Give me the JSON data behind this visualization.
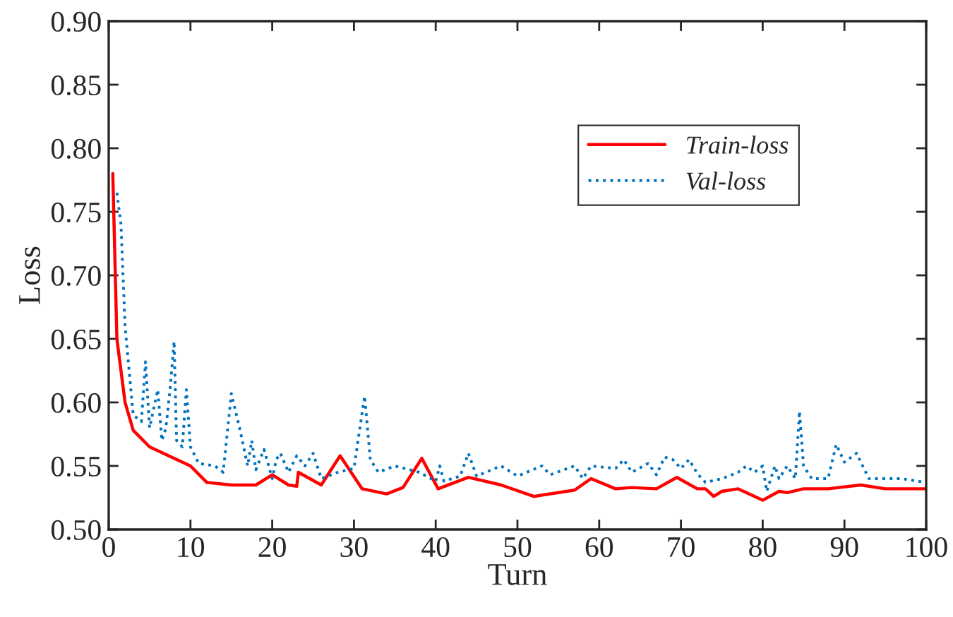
{
  "chart_data": {
    "type": "line",
    "xlabel": "Turn",
    "ylabel": "Loss",
    "xlim": [
      0,
      100
    ],
    "ylim": [
      0.5,
      0.9
    ],
    "xticks": [
      0,
      10,
      20,
      30,
      40,
      50,
      60,
      70,
      80,
      90,
      100
    ],
    "yticks": [
      {
        "value": 0.5,
        "label": "0.50"
      },
      {
        "value": 0.55,
        "label": "0.55"
      },
      {
        "value": 0.6,
        "label": "0.60"
      },
      {
        "value": 0.65,
        "label": "0.65"
      },
      {
        "value": 0.7,
        "label": "0.70"
      },
      {
        "value": 0.75,
        "label": "0.75"
      },
      {
        "value": 0.8,
        "label": "0.80"
      },
      {
        "value": 0.85,
        "label": "0.85"
      },
      {
        "value": 0.9,
        "label": "0.90"
      }
    ],
    "grid": false,
    "legend": "top right",
    "marker": "none",
    "series": [
      {
        "name": "Train-loss",
        "color": "#ff0000",
        "line_style": "solid",
        "x": [
          0.5,
          1,
          2,
          3,
          5,
          8,
          10,
          12,
          15,
          18,
          20,
          22,
          23,
          23.2,
          26,
          28.3,
          31,
          34,
          36,
          38.3,
          40.3,
          44,
          48,
          52,
          57,
          59,
          62,
          64,
          67,
          69.5,
          72,
          73,
          74,
          75,
          77,
          80,
          82,
          83,
          85,
          88,
          92,
          95,
          100
        ],
        "values": [
          0.78,
          0.65,
          0.6,
          0.578,
          0.565,
          0.556,
          0.55,
          0.537,
          0.535,
          0.535,
          0.543,
          0.535,
          0.534,
          0.545,
          0.535,
          0.558,
          0.532,
          0.528,
          0.533,
          0.556,
          0.532,
          0.541,
          0.535,
          0.526,
          0.531,
          0.54,
          0.532,
          0.533,
          0.532,
          0.541,
          0.532,
          0.532,
          0.526,
          0.53,
          0.532,
          0.523,
          0.53,
          0.529,
          0.532,
          0.532,
          0.535,
          0.532,
          0.532
        ]
      },
      {
        "name": "Val-loss",
        "color": "#0072bd",
        "line_style": "dotted",
        "x": [
          1,
          1.5,
          2,
          3,
          4,
          4.5,
          5,
          6,
          6.5,
          7,
          7.5,
          8,
          8.3,
          9,
          9.5,
          10,
          11,
          13,
          14,
          15,
          16,
          17,
          17.5,
          18,
          19,
          20,
          20.5,
          21,
          22,
          23,
          24,
          25,
          26,
          28,
          30,
          31.3,
          32,
          33,
          35,
          38,
          40,
          40.5,
          41,
          43,
          44,
          45,
          48,
          50,
          53,
          54,
          57,
          58,
          59,
          62,
          63,
          64,
          66,
          67,
          68,
          69,
          70,
          71,
          72,
          73,
          75,
          77,
          78,
          79,
          80,
          80.5,
          81.5,
          82,
          83,
          84,
          84.5,
          85,
          86,
          88,
          89,
          90,
          91.5,
          92,
          93,
          97,
          100
        ],
        "values": [
          0.765,
          0.74,
          0.66,
          0.59,
          0.585,
          0.632,
          0.58,
          0.61,
          0.57,
          0.58,
          0.61,
          0.648,
          0.57,
          0.565,
          0.61,
          0.565,
          0.552,
          0.55,
          0.545,
          0.607,
          0.58,
          0.55,
          0.57,
          0.547,
          0.563,
          0.54,
          0.555,
          0.56,
          0.545,
          0.558,
          0.55,
          0.56,
          0.54,
          0.545,
          0.548,
          0.605,
          0.555,
          0.545,
          0.55,
          0.545,
          0.538,
          0.55,
          0.538,
          0.542,
          0.56,
          0.542,
          0.55,
          0.542,
          0.55,
          0.543,
          0.55,
          0.54,
          0.55,
          0.548,
          0.555,
          0.545,
          0.552,
          0.543,
          0.557,
          0.555,
          0.548,
          0.555,
          0.544,
          0.537,
          0.54,
          0.545,
          0.55,
          0.545,
          0.55,
          0.53,
          0.55,
          0.54,
          0.55,
          0.54,
          0.593,
          0.55,
          0.54,
          0.54,
          0.567,
          0.553,
          0.56,
          0.553,
          0.54,
          0.54,
          0.537
        ]
      }
    ]
  }
}
